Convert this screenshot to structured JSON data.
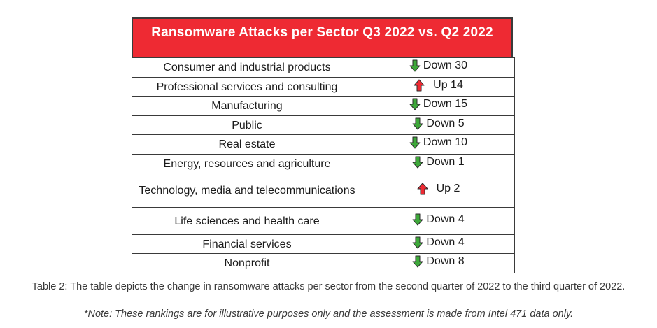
{
  "table": {
    "title": "Ransomware Attacks per Sector Q3 2022 vs. Q2 2022",
    "title_bg_color": "#ee2a33",
    "down_arrow_color": "#3ea83a",
    "up_arrow_color": "#ee2a33",
    "rows": [
      {
        "sector": "Consumer and industrial products",
        "direction": "down",
        "change": "Down 30"
      },
      {
        "sector": "Professional services and consulting",
        "direction": "up",
        "change": "Up 14"
      },
      {
        "sector": "Manufacturing",
        "direction": "down",
        "change": "Down 15"
      },
      {
        "sector": "Public",
        "direction": "down",
        "change": "Down 5"
      },
      {
        "sector": "Real estate",
        "direction": "down",
        "change": "Down 10"
      },
      {
        "sector": "Energy, resources and agriculture",
        "direction": "down",
        "change": "Down 1"
      },
      {
        "sector": "Technology, media and telecommunications",
        "direction": "up",
        "change": "Up 2"
      },
      {
        "sector": "Life sciences and health care",
        "direction": "down",
        "change": "Down 4"
      },
      {
        "sector": "Financial services",
        "direction": "down",
        "change": "Down 4"
      },
      {
        "sector": "Nonprofit",
        "direction": "down",
        "change": "Down 8"
      }
    ]
  },
  "caption": {
    "text": "Table 2: The table depicts the change in ransomware attacks per sector from the second quarter of 2022 to the third quarter of 2022.",
    "note": "*Note: These rankings are for illustrative purposes only and the assessment is made from Intel 471 data only."
  }
}
